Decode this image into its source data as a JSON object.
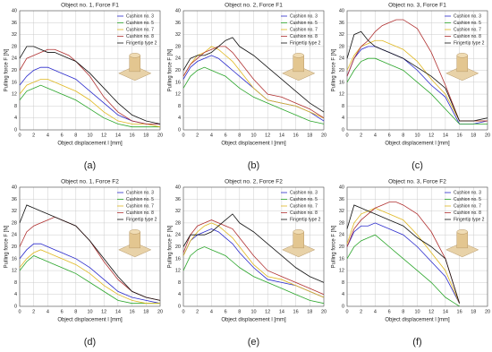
{
  "chart_data": [
    {
      "type": "line",
      "title": "Object no. 1, Force F1",
      "xlabel": "Object displacement l [mm]",
      "ylabel": "Pulling force F [N]",
      "panel_label": "(a)",
      "grid": true,
      "x": [
        0,
        1,
        2,
        3,
        4,
        5,
        6,
        7,
        8,
        10,
        12,
        14,
        16,
        18,
        20
      ],
      "xlim": [
        0,
        20
      ],
      "ylim": [
        0,
        40
      ],
      "xticks": [
        0,
        2,
        4,
        6,
        8,
        10,
        12,
        14,
        16,
        18,
        20
      ],
      "yticks": [
        0,
        4,
        8,
        12,
        16,
        20,
        24,
        28,
        32,
        36,
        40
      ],
      "series": [
        {
          "name": "Cushion no. 3",
          "color": "#2a2acc",
          "values": [
            15,
            18,
            20,
            21,
            21,
            20,
            19,
            18,
            17,
            13,
            9,
            5,
            3,
            2,
            2
          ]
        },
        {
          "name": "Cushion no. 5",
          "color": "#2aa52a",
          "values": [
            10,
            13,
            14,
            15,
            14,
            13,
            12,
            11,
            10,
            7,
            4,
            2,
            1,
            1,
            1
          ]
        },
        {
          "name": "Cushion no. 7",
          "color": "#e0b820",
          "values": [
            12,
            15,
            16,
            17,
            17,
            16,
            15,
            14,
            13,
            10,
            6,
            3,
            2,
            2,
            1
          ]
        },
        {
          "name": "Cushion no. 8",
          "color": "#b03030",
          "values": [
            20,
            24,
            25,
            26,
            27,
            27,
            26,
            25,
            23,
            18,
            11,
            6,
            3,
            2,
            2
          ]
        },
        {
          "name": "Fingertip type 2",
          "color": "#111111",
          "values": [
            24,
            28,
            28,
            27,
            26,
            26,
            25,
            24,
            23,
            19,
            14,
            9,
            5,
            3,
            2
          ]
        }
      ]
    },
    {
      "type": "line",
      "title": "Object no. 2, Force F1",
      "xlabel": "Object displacement l [mm]",
      "ylabel": "Pulling force F [N]",
      "panel_label": "(b)",
      "grid": true,
      "x": [
        0,
        1,
        2,
        3,
        4,
        5,
        6,
        7,
        8,
        10,
        12,
        14,
        16,
        18,
        20
      ],
      "xlim": [
        0,
        20
      ],
      "ylim": [
        0,
        40
      ],
      "xticks": [
        0,
        2,
        4,
        6,
        8,
        10,
        12,
        14,
        16,
        18,
        20
      ],
      "yticks": [
        0,
        4,
        8,
        12,
        16,
        20,
        24,
        28,
        32,
        36,
        40
      ],
      "series": [
        {
          "name": "Cushion no. 3",
          "color": "#2a2acc",
          "values": [
            17,
            21,
            23,
            24,
            25,
            24,
            22,
            20,
            18,
            14,
            10,
            9,
            8,
            6,
            3
          ]
        },
        {
          "name": "Cushion no. 5",
          "color": "#2aa52a",
          "values": [
            14,
            18,
            20,
            21,
            20,
            19,
            18,
            16,
            14,
            11,
            9,
            7,
            5,
            3,
            2
          ]
        },
        {
          "name": "Cushion no. 7",
          "color": "#e0b820",
          "values": [
            18,
            22,
            25,
            26,
            28,
            27,
            25,
            23,
            20,
            14,
            10,
            9,
            8,
            6,
            4
          ]
        },
        {
          "name": "Cushion no. 8",
          "color": "#b03030",
          "values": [
            18,
            22,
            24,
            26,
            27,
            28,
            28,
            26,
            23,
            17,
            12,
            11,
            9,
            7,
            4
          ]
        },
        {
          "name": "Fingertip type 2",
          "color": "#111111",
          "values": [
            20,
            24,
            25,
            25,
            26,
            28,
            30,
            31,
            28,
            25,
            21,
            17,
            13,
            9,
            6
          ]
        }
      ]
    },
    {
      "type": "line",
      "title": "Object no. 3, Force F1",
      "xlabel": "Object displacement l [mm]",
      "ylabel": "Pulling force F [N]",
      "panel_label": "(c)",
      "grid": true,
      "x": [
        0,
        1,
        2,
        3,
        4,
        5,
        6,
        7,
        8,
        10,
        12,
        14,
        16,
        18,
        20
      ],
      "xlim": [
        0,
        20
      ],
      "ylim": [
        0,
        40
      ],
      "xticks": [
        0,
        2,
        4,
        6,
        8,
        10,
        12,
        14,
        16,
        18,
        20
      ],
      "yticks": [
        0,
        4,
        8,
        12,
        16,
        20,
        24,
        28,
        32,
        36,
        40
      ],
      "series": [
        {
          "name": "Cushion no. 3",
          "color": "#2a2acc",
          "values": [
            18,
            24,
            27,
            28,
            28,
            27,
            26,
            25,
            24,
            20,
            15,
            11,
            2,
            2,
            3
          ]
        },
        {
          "name": "Cushion no. 5",
          "color": "#2aa52a",
          "values": [
            16,
            20,
            23,
            24,
            24,
            23,
            22,
            21,
            20,
            16,
            12,
            7,
            2,
            2,
            2
          ]
        },
        {
          "name": "Cushion no. 7",
          "color": "#e0b820",
          "values": [
            20,
            25,
            28,
            29,
            30,
            30,
            29,
            28,
            27,
            23,
            17,
            12,
            3,
            3,
            3
          ]
        },
        {
          "name": "Cushion no. 8",
          "color": "#b03030",
          "values": [
            18,
            24,
            28,
            30,
            33,
            35,
            36,
            37,
            37,
            34,
            26,
            15,
            3,
            3,
            3
          ]
        },
        {
          "name": "Fingertip type 2",
          "color": "#111111",
          "values": [
            24,
            32,
            33,
            30,
            28,
            27,
            26,
            25,
            24,
            21,
            18,
            14,
            3,
            3,
            4
          ]
        }
      ]
    },
    {
      "type": "line",
      "title": "Object no. 1, Force F2",
      "xlabel": "Object displacement l [mm]",
      "ylabel": "Pulling force F [N]",
      "panel_label": "(d)",
      "grid": true,
      "x": [
        0,
        1,
        2,
        3,
        4,
        5,
        6,
        7,
        8,
        10,
        12,
        14,
        16,
        18,
        20
      ],
      "xlim": [
        0,
        20
      ],
      "ylim": [
        0,
        40
      ],
      "xticks": [
        0,
        2,
        4,
        6,
        8,
        10,
        12,
        14,
        16,
        18,
        20
      ],
      "yticks": [
        0,
        4,
        8,
        12,
        16,
        20,
        24,
        28,
        32,
        36,
        40
      ],
      "series": [
        {
          "name": "Cushion no. 3",
          "color": "#2a2acc",
          "values": [
            16,
            19,
            21,
            21,
            20,
            19,
            18,
            17,
            16,
            13,
            9,
            5,
            3,
            2,
            1
          ]
        },
        {
          "name": "Cushion no. 5",
          "color": "#2aa52a",
          "values": [
            12,
            15,
            17,
            16,
            15,
            14,
            13,
            12,
            11,
            8,
            5,
            2,
            1,
            1,
            1
          ]
        },
        {
          "name": "Cushion no. 7",
          "color": "#e0b820",
          "values": [
            13,
            16,
            18,
            19,
            18,
            17,
            16,
            15,
            14,
            11,
            7,
            4,
            2,
            1,
            1
          ]
        },
        {
          "name": "Cushion no. 8",
          "color": "#b03030",
          "values": [
            20,
            25,
            27,
            28,
            29,
            30,
            29,
            28,
            27,
            22,
            15,
            9,
            5,
            3,
            2
          ]
        },
        {
          "name": "Fingertip type 2",
          "color": "#111111",
          "values": [
            28,
            34,
            33,
            32,
            31,
            30,
            29,
            28,
            27,
            22,
            16,
            10,
            5,
            3,
            2
          ]
        }
      ]
    },
    {
      "type": "line",
      "title": "Object no. 2, Force F2",
      "xlabel": "Object displacement l [mm]",
      "ylabel": "Pulling force F [N]",
      "panel_label": "(e)",
      "grid": true,
      "x": [
        0,
        1,
        2,
        3,
        4,
        5,
        6,
        7,
        8,
        10,
        12,
        14,
        16,
        18,
        20
      ],
      "xlim": [
        0,
        20
      ],
      "ylim": [
        0,
        40
      ],
      "xticks": [
        0,
        2,
        4,
        6,
        8,
        10,
        12,
        14,
        16,
        18,
        20
      ],
      "yticks": [
        0,
        4,
        8,
        12,
        16,
        20,
        24,
        28,
        32,
        36,
        40
      ],
      "series": [
        {
          "name": "Cushion no. 3",
          "color": "#2a2acc",
          "values": [
            17,
            22,
            24,
            25,
            26,
            25,
            23,
            21,
            18,
            13,
            9,
            8,
            7,
            5,
            3
          ]
        },
        {
          "name": "Cushion no. 5",
          "color": "#2aa52a",
          "values": [
            12,
            17,
            19,
            20,
            19,
            18,
            17,
            15,
            13,
            10,
            8,
            6,
            4,
            2,
            1
          ]
        },
        {
          "name": "Cushion no. 7",
          "color": "#e0b820",
          "values": [
            17,
            22,
            25,
            27,
            28,
            27,
            25,
            23,
            20,
            14,
            10,
            9,
            7,
            5,
            3
          ]
        },
        {
          "name": "Cushion no. 8",
          "color": "#b03030",
          "values": [
            18,
            24,
            27,
            28,
            29,
            28,
            27,
            26,
            23,
            17,
            12,
            10,
            8,
            6,
            4
          ]
        },
        {
          "name": "Fingertip type 2",
          "color": "#111111",
          "values": [
            20,
            24,
            24,
            24,
            25,
            27,
            29,
            31,
            28,
            25,
            21,
            17,
            13,
            10,
            8
          ]
        }
      ]
    },
    {
      "type": "line",
      "title": "Object no. 3, Force F2",
      "xlabel": "Object displacement l [mm]",
      "ylabel": "Pulling force F [N]",
      "panel_label": "(f)",
      "grid": true,
      "x": [
        0,
        1,
        2,
        3,
        4,
        5,
        6,
        7,
        8,
        10,
        12,
        14,
        16,
        18,
        20
      ],
      "xlim": [
        0,
        20
      ],
      "ylim": [
        0,
        40
      ],
      "xticks": [
        0,
        2,
        4,
        6,
        8,
        10,
        12,
        14,
        16,
        18,
        20
      ],
      "yticks": [
        0,
        4,
        8,
        12,
        16,
        20,
        24,
        28,
        32,
        36,
        40
      ],
      "series": [
        {
          "name": "Cushion no. 3",
          "color": "#2a2acc",
          "values": [
            20,
            25,
            27,
            27,
            28,
            27,
            26,
            25,
            24,
            20,
            15,
            10,
            1,
            null,
            null
          ]
        },
        {
          "name": "Cushion no. 5",
          "color": "#2aa52a",
          "values": [
            16,
            20,
            22,
            23,
            24,
            22,
            20,
            18,
            16,
            12,
            8,
            3,
            0,
            null,
            null
          ]
        },
        {
          "name": "Cushion no. 7",
          "color": "#e0b820",
          "values": [
            21,
            28,
            31,
            32,
            33,
            32,
            31,
            30,
            29,
            24,
            18,
            12,
            1,
            null,
            null
          ]
        },
        {
          "name": "Cushion no. 8",
          "color": "#b03030",
          "values": [
            20,
            26,
            29,
            31,
            33,
            34,
            35,
            35,
            34,
            31,
            25,
            16,
            1,
            null,
            null
          ]
        },
        {
          "name": "Fingertip type 2",
          "color": "#111111",
          "values": [
            26,
            34,
            33,
            32,
            31,
            30,
            29,
            28,
            27,
            23,
            20,
            16,
            1,
            null,
            null
          ]
        }
      ]
    }
  ]
}
